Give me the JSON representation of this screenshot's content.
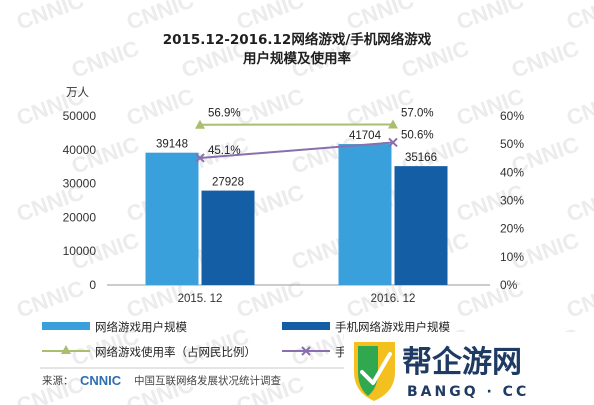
{
  "chart_data": {
    "type": "bar",
    "title": "2015.12-2016.12网络游戏/手机网络游戏",
    "subtitle": "用户规模及使用率",
    "categories": [
      "2015. 12",
      "2016. 12"
    ],
    "y_left": {
      "unit_label": "万人",
      "ylim": [
        0,
        50000
      ],
      "ticks": [
        "0",
        "10000",
        "20000",
        "30000",
        "40000",
        "50000"
      ]
    },
    "y_right": {
      "ylim": [
        0,
        60
      ],
      "ticks": [
        "0%",
        "10%",
        "20%",
        "30%",
        "40%",
        "50%",
        "60%"
      ]
    },
    "series": [
      {
        "name": "网络游戏用户规模",
        "kind": "bar",
        "axis": "left",
        "color": "#3aa0dc",
        "values": [
          39148,
          41704
        ],
        "labels": [
          "39148",
          "41704"
        ]
      },
      {
        "name": "手机网络游戏用户规模",
        "kind": "bar",
        "axis": "left",
        "color": "#135ea4",
        "values": [
          27928,
          35166
        ],
        "labels": [
          "27928",
          "35166"
        ]
      },
      {
        "name": "网络游戏使用率（占网民比例）",
        "kind": "line",
        "axis": "right",
        "color": "#a9bf6e",
        "marker": "triangle",
        "values": [
          56.9,
          57.0
        ],
        "labels": [
          "56.9%",
          "57.0%"
        ]
      },
      {
        "name": "手机网",
        "kind": "line",
        "axis": "right",
        "color": "#8a6fae",
        "marker": "x",
        "values": [
          45.1,
          50.6
        ],
        "labels": [
          "45.1%",
          "50.6%"
        ]
      }
    ],
    "grid": false,
    "legend": "bottom"
  },
  "legend_labels": [
    "网络游戏用户规模",
    "手机网络游戏用户规模",
    "网络游戏使用率（占网民比例）",
    "手机网"
  ],
  "source": {
    "prefix": "来源：",
    "org": "CNNIC",
    "text": "中国互联网络发展状况统计调查"
  },
  "watermark": {
    "text": "CNNIC"
  },
  "badge": {
    "main": "帮企游网",
    "sub": "BANGQ · CC"
  }
}
